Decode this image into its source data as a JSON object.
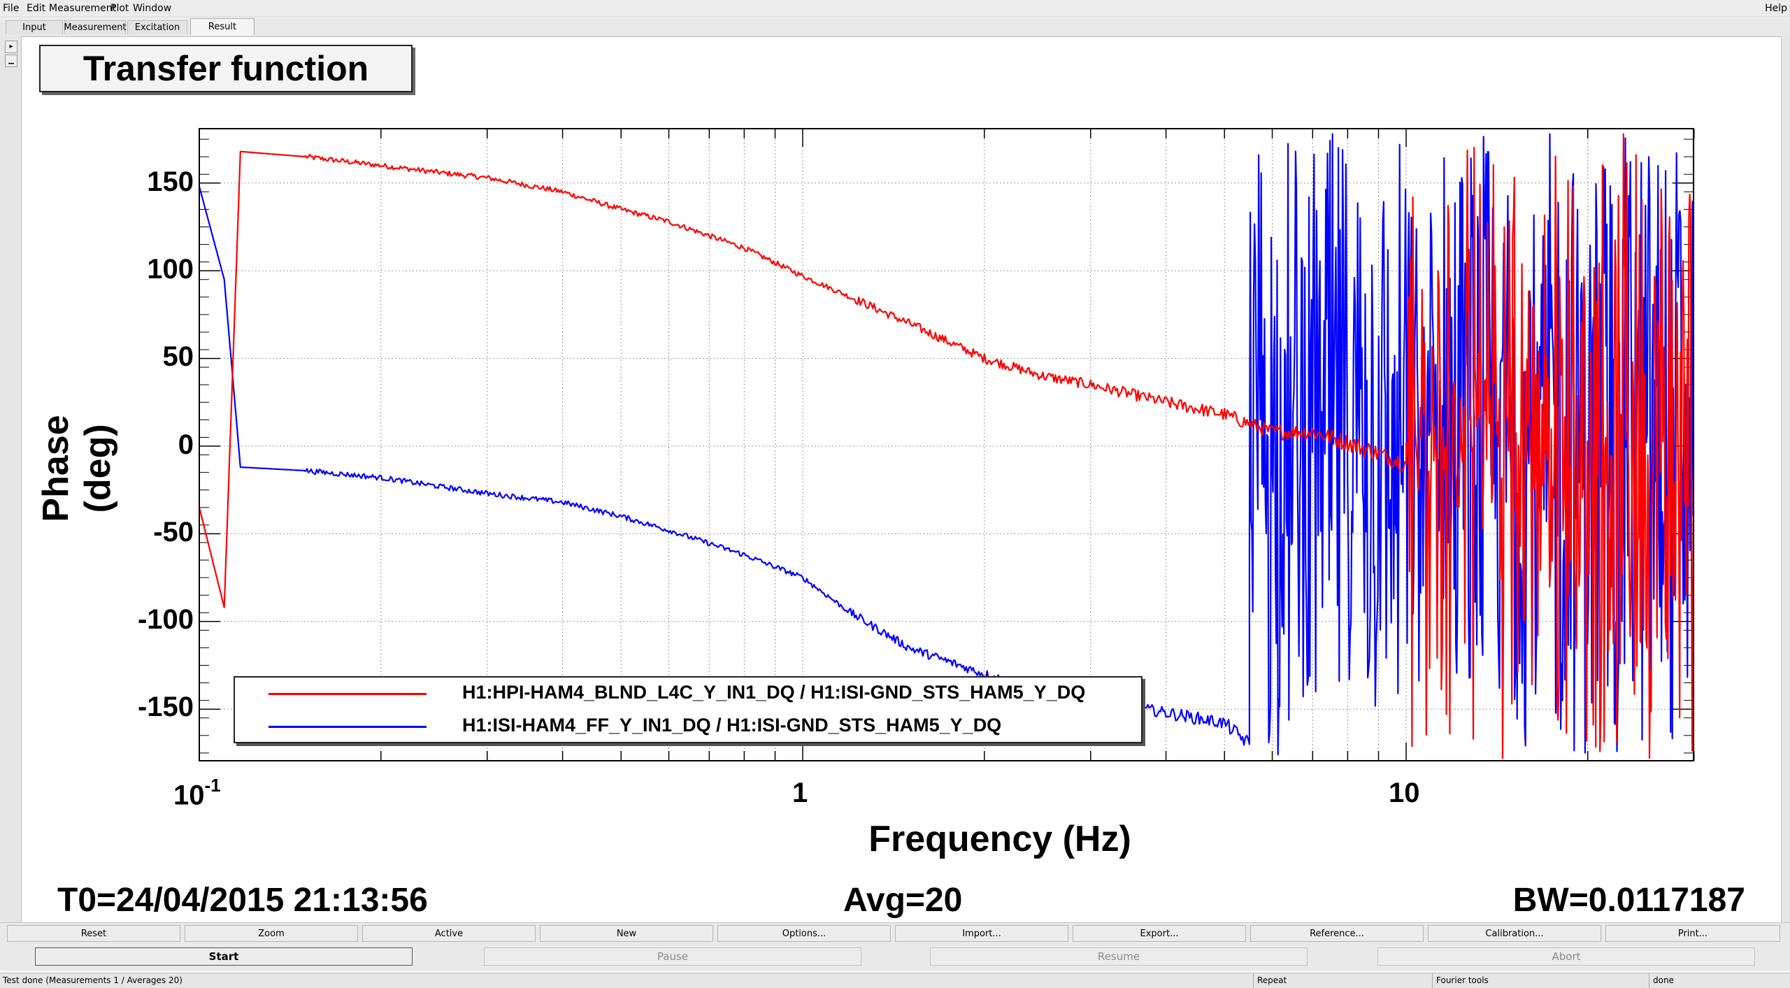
{
  "menu": {
    "file": "File",
    "edit": "Edit",
    "measurement": "Measurement",
    "plot": "Plot",
    "window": "Window",
    "help": "Help"
  },
  "tabs": [
    {
      "label": "Input",
      "active": false
    },
    {
      "label": "Measurement",
      "active": false
    },
    {
      "label": "Excitation",
      "active": false
    },
    {
      "label": "Result",
      "active": true
    }
  ],
  "plot": {
    "title": "Transfer function",
    "ylabel": "Phase (deg)",
    "xlabel": "Frequency (Hz)",
    "yticks": [
      "150",
      "100",
      "50",
      "0",
      "-50",
      "-100",
      "-150"
    ],
    "xticks": {
      "tenth_base": "10",
      "tenth_exp": "-1",
      "one": "1",
      "ten": "10"
    },
    "info": {
      "t0": "T0=24/04/2015 21:13:56",
      "avg": "Avg=20",
      "bw": "BW=0.0117187"
    },
    "legend": [
      {
        "label": "H1:HPI-HAM4_BLND_L4C_Y_IN1_DQ / H1:ISI-GND_STS_HAM5_Y_DQ",
        "color": "#ff0000"
      },
      {
        "label": "H1:ISI-HAM4_FF_Y_IN1_DQ / H1:ISI-GND_STS_HAM5_Y_DQ",
        "color": "#0000ff"
      }
    ]
  },
  "chart_data": {
    "type": "line",
    "title": "Transfer function",
    "xlabel": "Frequency (Hz)",
    "ylabel": "Phase (deg)",
    "xscale": "log",
    "xlim": [
      0.1,
      32
    ],
    "ylim": [
      -180,
      180
    ],
    "grid": true,
    "legend_position": "bottom-left",
    "series": [
      {
        "name": "H1:HPI-HAM4_BLND_L4C_Y_IN1_DQ / H1:ISI-GND_STS_HAM5_Y_DQ",
        "color": "#ff0000",
        "x": [
          0.1,
          0.11,
          0.117,
          0.15,
          0.2,
          0.25,
          0.3,
          0.4,
          0.5,
          0.6,
          0.8,
          1.0,
          1.2,
          1.5,
          2.0,
          2.5,
          3.0,
          4.0,
          5.0,
          6.0,
          7.0,
          8.0,
          10.0
        ],
        "y": [
          -35,
          -92,
          168,
          165,
          160,
          156,
          153,
          145,
          135,
          128,
          113,
          97,
          85,
          70,
          50,
          40,
          35,
          25,
          18,
          8,
          8,
          2,
          -10
        ],
        "noisy_above_hz": 10,
        "noisy_range": [
          -180,
          180
        ]
      },
      {
        "name": "H1:ISI-HAM4_FF_Y_IN1_DQ / H1:ISI-GND_STS_HAM5_Y_DQ",
        "color": "#0000ff",
        "x": [
          0.1,
          0.11,
          0.117,
          0.15,
          0.2,
          0.25,
          0.3,
          0.4,
          0.5,
          0.6,
          0.8,
          1.0,
          1.2,
          1.5,
          2.0,
          2.5,
          3.0,
          4.0,
          5.0,
          5.5
        ],
        "y": [
          148,
          95,
          -12,
          -14,
          -18,
          -23,
          -27,
          -32,
          -40,
          -48,
          -62,
          -75,
          -95,
          -115,
          -130,
          -140,
          -145,
          -152,
          -158,
          -170
        ],
        "noisy_above_hz": 5.5,
        "noisy_range": [
          -180,
          180
        ]
      }
    ]
  },
  "buttons_row1": [
    "Reset",
    "Zoom",
    "Active",
    "New",
    "Options...",
    "Import...",
    "Export...",
    "Reference...",
    "Calibration...",
    "Print..."
  ],
  "buttons_row2": [
    {
      "label": "Start",
      "enabled": true
    },
    {
      "label": "Pause",
      "enabled": false
    },
    {
      "label": "Resume",
      "enabled": false
    },
    {
      "label": "Abort",
      "enabled": false
    }
  ],
  "status": {
    "message": "Test done (Measurements 1 / Averages 20)",
    "repeat": "Repeat",
    "tools": "Fourier tools",
    "state": "done"
  }
}
